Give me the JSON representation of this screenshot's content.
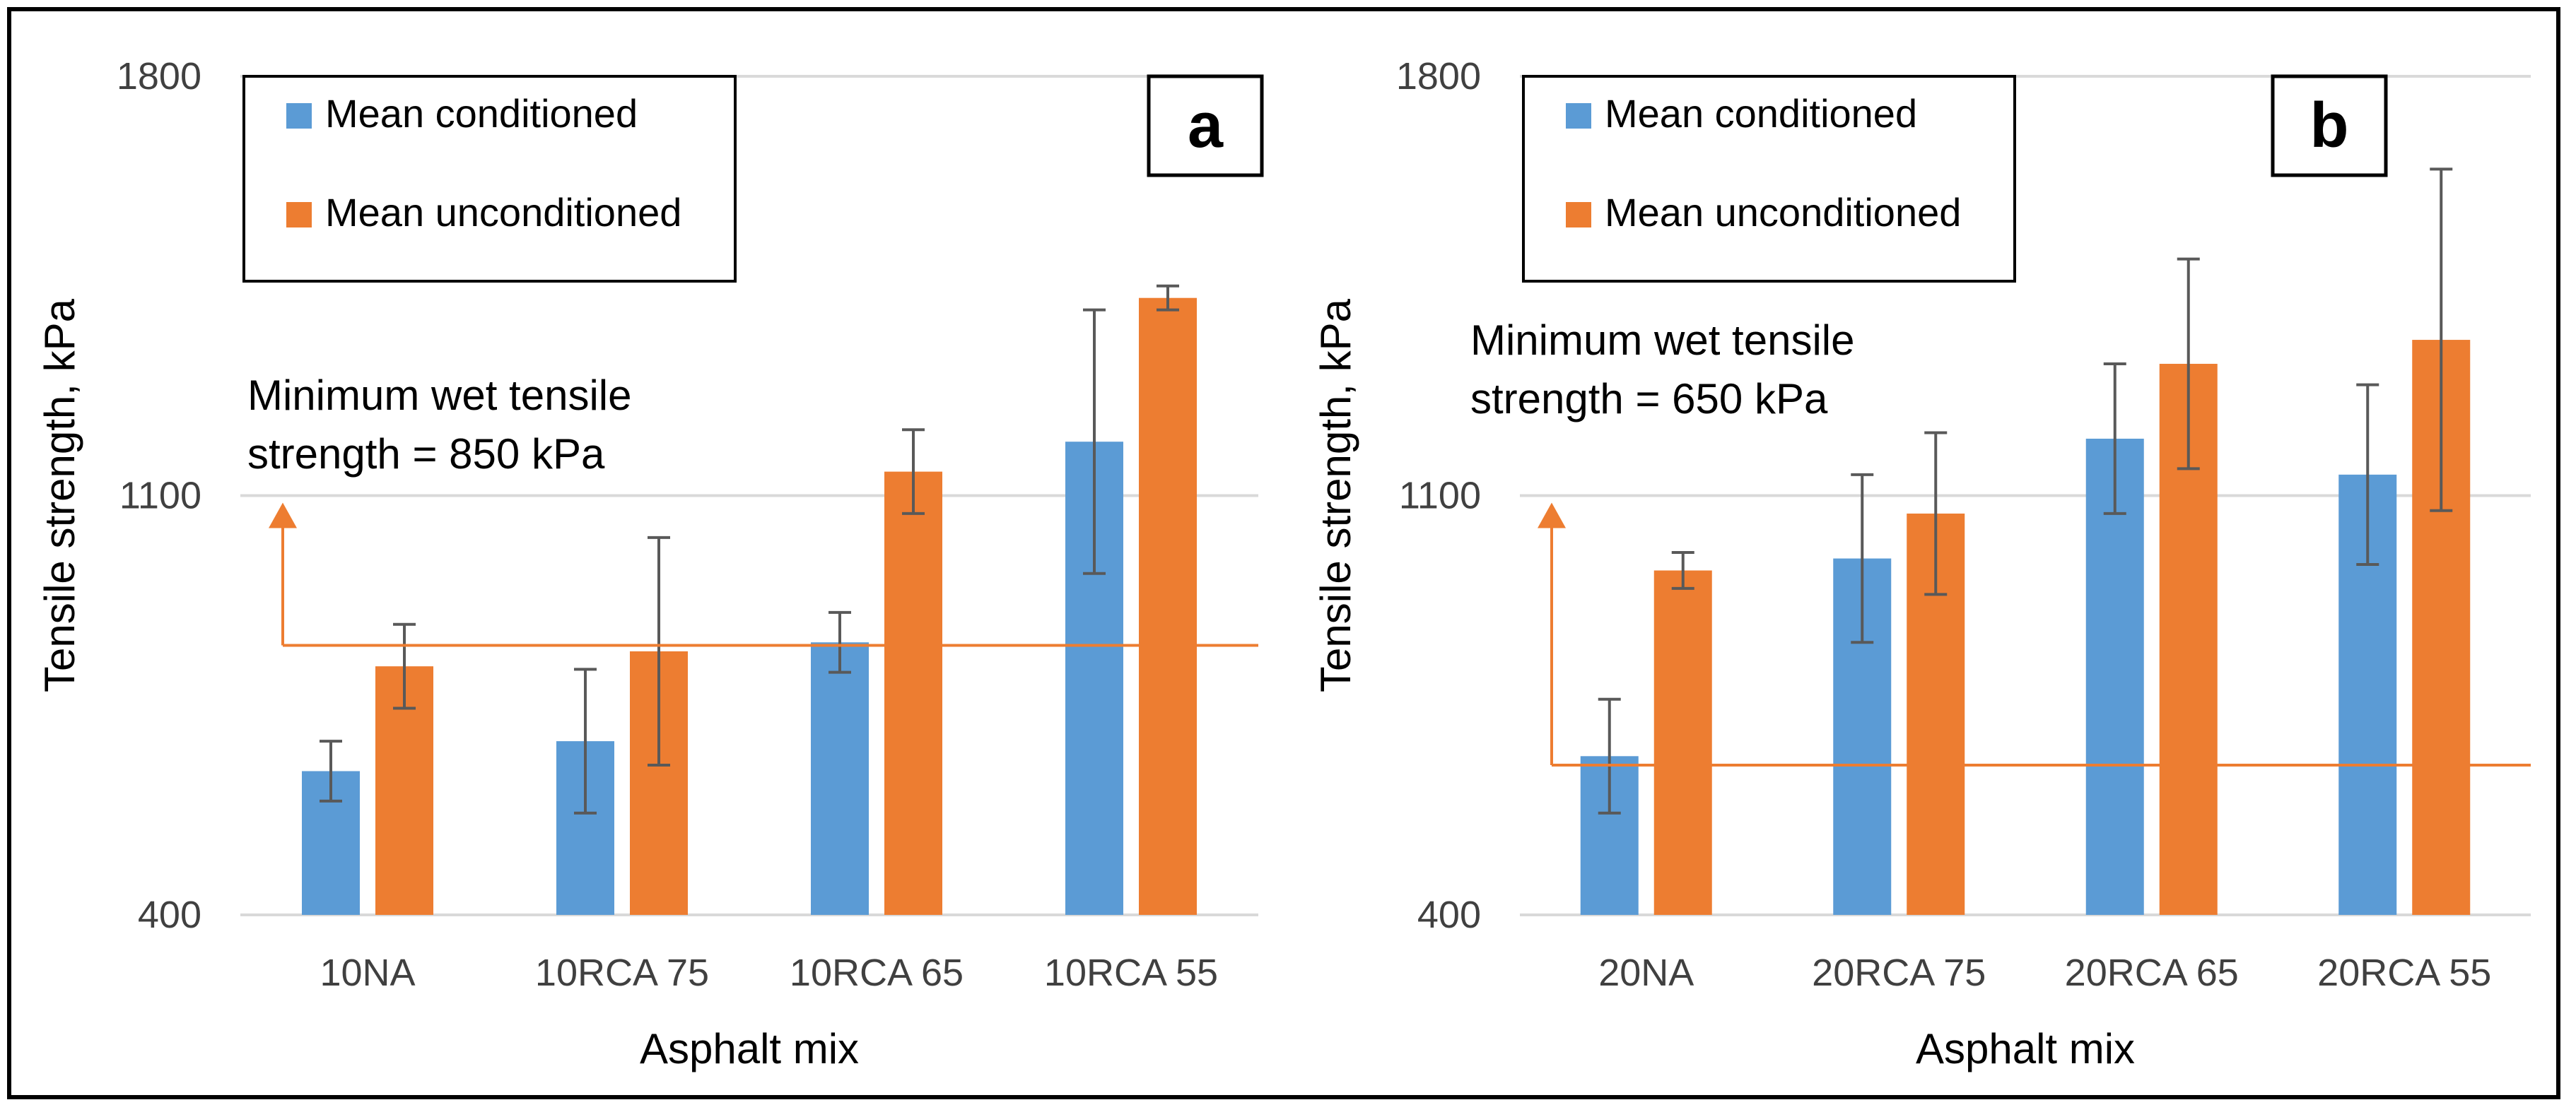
{
  "chart_data": [
    {
      "type": "bar",
      "panel_label": "a",
      "categories": [
        "10NA",
        "10RCA 75",
        "10RCA 65",
        "10RCA 55"
      ],
      "series": [
        {
          "name": "Mean conditioned",
          "color": "#5B9BD5",
          "values": [
            640,
            690,
            855,
            1190
          ],
          "error": [
            50,
            120,
            50,
            220
          ]
        },
        {
          "name": "Mean unconditioned",
          "color": "#ED7D31",
          "values": [
            815,
            840,
            1140,
            1430
          ],
          "error": [
            70,
            190,
            70,
            20
          ]
        }
      ],
      "threshold": {
        "value": 850,
        "label_line1": "Minimum wet tensile",
        "label_line2": "strength = 850 kPa",
        "color": "#ED7D31"
      },
      "ylim": [
        400,
        1800
      ],
      "yticks": [
        "400",
        "1100",
        "1800"
      ],
      "xlabel": "Asphalt mix",
      "ylabel": "Tensile strength, kPa",
      "grid": true,
      "legend": "top-left"
    },
    {
      "type": "bar",
      "panel_label": "b",
      "categories": [
        "20NA",
        "20RCA 75",
        "20RCA 65",
        "20RCA 55"
      ],
      "series": [
        {
          "name": "Mean conditioned",
          "color": "#5B9BD5",
          "values": [
            665,
            995,
            1195,
            1135
          ],
          "error": [
            95,
            140,
            125,
            150
          ]
        },
        {
          "name": "Mean unconditioned",
          "color": "#ED7D31",
          "values": [
            975,
            1070,
            1320,
            1360
          ],
          "error": [
            30,
            135,
            175,
            285
          ]
        }
      ],
      "threshold": {
        "value": 650,
        "label_line1": "Minimum wet tensile",
        "label_line2": "strength = 650 kPa",
        "color": "#ED7D31"
      },
      "ylim": [
        400,
        1800
      ],
      "yticks": [
        "400",
        "1100",
        "1800"
      ],
      "xlabel": "Asphalt mix",
      "ylabel": "Tensile strength, kPa",
      "grid": true,
      "legend": "top-left"
    }
  ]
}
